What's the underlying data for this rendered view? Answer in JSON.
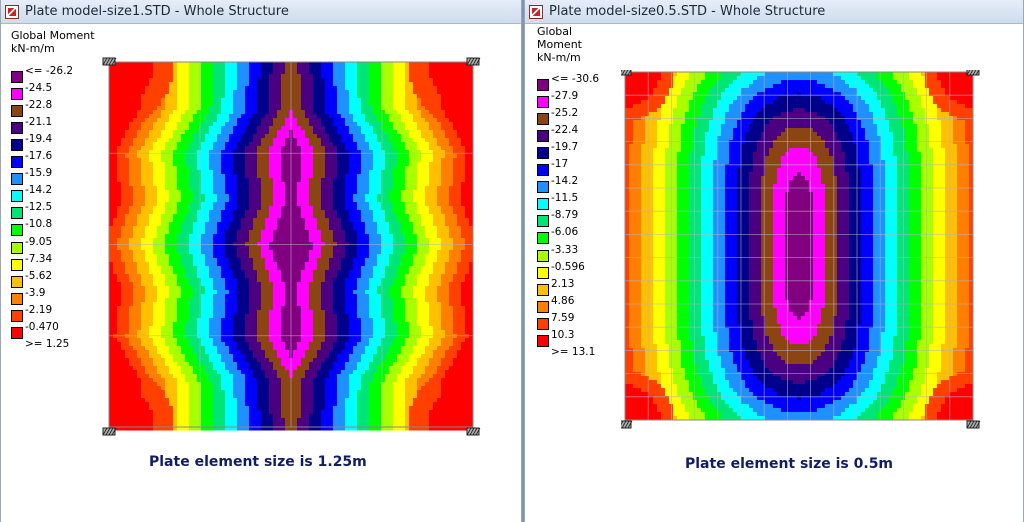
{
  "left": {
    "title": "Plate model-size1.STD - Whole Structure",
    "legend_title": [
      "Global Moment",
      "kN-m/m"
    ],
    "legend": [
      {
        "label": "<= -26.2",
        "color": "#800080"
      },
      {
        "label": "-24.5",
        "color": "#ff00ff"
      },
      {
        "label": "-22.8",
        "color": "#8b4513"
      },
      {
        "label": "-21.1",
        "color": "#4b0082"
      },
      {
        "label": "-19.4",
        "color": "#00008b"
      },
      {
        "label": "-17.6",
        "color": "#0000ff"
      },
      {
        "label": "-15.9",
        "color": "#1e90ff"
      },
      {
        "label": "-14.2",
        "color": "#00ffff"
      },
      {
        "label": "-12.5",
        "color": "#00e676"
      },
      {
        "label": "-10.8",
        "color": "#00ff00"
      },
      {
        "label": "-9.05",
        "color": "#a8ff00"
      },
      {
        "label": "-7.34",
        "color": "#ffff00"
      },
      {
        "label": "-5.62",
        "color": "#ffc000"
      },
      {
        "label": "-3.9",
        "color": "#ff8000"
      },
      {
        "label": "-2.19",
        "color": "#ff4000"
      },
      {
        "label": "-0.470",
        "color": "#ff0000"
      },
      {
        "label": ">= 1.25",
        "color": null
      }
    ],
    "caption": "Plate element size is 1.25m"
  },
  "right": {
    "title": "Plate model-size0.5.STD - Whole Structure",
    "legend_title": [
      "Global",
      "Moment",
      "kN-m/m"
    ],
    "legend": [
      {
        "label": "<= -30.6",
        "color": "#800080"
      },
      {
        "label": "-27.9",
        "color": "#ff00ff"
      },
      {
        "label": "-25.2",
        "color": "#8b4513"
      },
      {
        "label": "-22.4",
        "color": "#4b0082"
      },
      {
        "label": "-19.7",
        "color": "#00008b"
      },
      {
        "label": "-17",
        "color": "#0000ff"
      },
      {
        "label": "-14.2",
        "color": "#1e90ff"
      },
      {
        "label": "-11.5",
        "color": "#00ffff"
      },
      {
        "label": "-8.79",
        "color": "#00e676"
      },
      {
        "label": "-6.06",
        "color": "#00ff00"
      },
      {
        "label": "-3.33",
        "color": "#a8ff00"
      },
      {
        "label": "-0.596",
        "color": "#ffff00"
      },
      {
        "label": "2.13",
        "color": "#ffc000"
      },
      {
        "label": "4.86",
        "color": "#ff8000"
      },
      {
        "label": "7.59",
        "color": "#ff4000"
      },
      {
        "label": "10.3",
        "color": "#ff0000"
      },
      {
        "label": ">= 13.1",
        "color": null
      }
    ],
    "caption": "Plate element size is 0.5m"
  },
  "band_palette": [
    "#ff0000",
    "#ff4000",
    "#ff8000",
    "#ffc000",
    "#ffff00",
    "#a8ff00",
    "#00ff00",
    "#00e676",
    "#00ffff",
    "#1e90ff",
    "#0000ff",
    "#00008b",
    "#4b0082",
    "#8b4513",
    "#ff00ff",
    "#800080"
  ]
}
